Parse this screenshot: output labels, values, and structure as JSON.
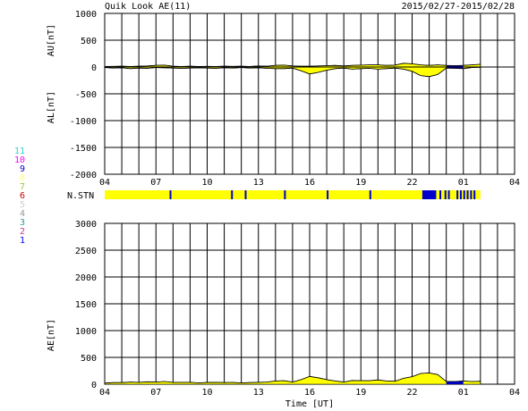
{
  "header": {
    "title": "Quik Look AE(11)",
    "date_range": "2015/02/27-2015/02/28"
  },
  "stations_legend": [
    {
      "label": "11",
      "color": "#33cccc"
    },
    {
      "label": "10",
      "color": "#ff00ff"
    },
    {
      "label": "9",
      "color": "#0000cc"
    },
    {
      "label": "8",
      "color": "#ffff66"
    },
    {
      "label": "7",
      "color": "#99cc33"
    },
    {
      "label": "6",
      "color": "#cc0000"
    },
    {
      "label": "5",
      "color": "#cccccc"
    },
    {
      "label": "4",
      "color": "#999999"
    },
    {
      "label": "3",
      "color": "#339999"
    },
    {
      "label": "2",
      "color": "#cc3399"
    },
    {
      "label": "1",
      "color": "#0000ff"
    }
  ],
  "colors": {
    "au_fill": "#ffff00",
    "al_fill": "#ffff00",
    "ae_fill": "#ffff00",
    "dark_fill": "#0000cc",
    "grid": "#000000",
    "station_base": "#ffff00"
  },
  "chart_data": [
    {
      "type": "area",
      "name": "AU/AL",
      "ylabel_upper": "AU[nT]",
      "ylabel_lower": "AL[nT]",
      "ylim": [
        -2000,
        1000
      ],
      "yticks": [
        1000,
        500,
        0,
        -500,
        -1000,
        -1500,
        -2000
      ],
      "xlim": [
        0,
        24
      ],
      "xtick_labels": [
        "04",
        "07",
        "10",
        "13",
        "16",
        "19",
        "22",
        "01",
        "04"
      ],
      "xtick_hours": [
        0,
        3,
        6,
        9,
        12,
        15,
        18,
        21,
        24
      ],
      "x_hours": [
        0,
        0.5,
        1,
        1.5,
        2,
        2.5,
        3,
        3.5,
        4,
        4.5,
        5,
        5.5,
        6,
        6.5,
        7,
        7.5,
        8,
        8.5,
        9,
        9.5,
        10,
        10.5,
        11,
        11.5,
        12,
        12.5,
        13,
        13.5,
        14,
        14.5,
        15,
        15.5,
        16,
        16.5,
        17,
        17.5,
        18,
        18.5,
        19,
        19.5,
        20,
        20.5,
        21,
        21.5,
        22
      ],
      "au": [
        10,
        12,
        15,
        10,
        15,
        20,
        30,
        35,
        15,
        10,
        15,
        10,
        12,
        10,
        15,
        12,
        15,
        10,
        20,
        15,
        30,
        35,
        20,
        15,
        15,
        20,
        25,
        30,
        20,
        30,
        35,
        40,
        40,
        30,
        35,
        70,
        60,
        40,
        30,
        40,
        30,
        25,
        30,
        40,
        50
      ],
      "al": [
        -10,
        -20,
        -15,
        -30,
        -20,
        -25,
        -10,
        -15,
        -20,
        -25,
        -20,
        -15,
        -20,
        -25,
        -15,
        -20,
        -10,
        -20,
        -15,
        -25,
        -30,
        -30,
        -20,
        -70,
        -130,
        -100,
        -60,
        -30,
        -20,
        -40,
        -30,
        -25,
        -40,
        -30,
        -20,
        -40,
        -80,
        -160,
        -180,
        -140,
        -20,
        -25,
        -30,
        -10,
        -5
      ]
    },
    {
      "type": "area",
      "name": "AE",
      "ylabel": "AE[nT]",
      "xlabel": "Time [UT]",
      "ylim": [
        0,
        3000
      ],
      "yticks": [
        3000,
        2500,
        2000,
        1500,
        1000,
        500,
        0
      ],
      "xlim": [
        0,
        24
      ],
      "xtick_labels": [
        "04",
        "07",
        "10",
        "13",
        "16",
        "19",
        "22",
        "01",
        "04"
      ],
      "xtick_hours": [
        0,
        3,
        6,
        9,
        12,
        15,
        18,
        21,
        24
      ],
      "x_hours": [
        0,
        0.5,
        1,
        1.5,
        2,
        2.5,
        3,
        3.5,
        4,
        4.5,
        5,
        5.5,
        6,
        6.5,
        7,
        7.5,
        8,
        8.5,
        9,
        9.5,
        10,
        10.5,
        11,
        11.5,
        12,
        12.5,
        13,
        13.5,
        14,
        14.5,
        15,
        15.5,
        16,
        16.5,
        17,
        17.5,
        18,
        18.5,
        19,
        19.5,
        20,
        20.5,
        21,
        21.5,
        22
      ],
      "ae": [
        20,
        30,
        30,
        40,
        35,
        45,
        40,
        50,
        35,
        35,
        35,
        25,
        32,
        35,
        30,
        32,
        25,
        30,
        35,
        40,
        60,
        65,
        40,
        85,
        145,
        120,
        85,
        60,
        40,
        70,
        65,
        65,
        80,
        60,
        55,
        110,
        140,
        200,
        210,
        180,
        50,
        50,
        60,
        50,
        55
      ]
    }
  ],
  "station_strip": {
    "label": "N.STN",
    "base_level": 8,
    "base_color": "#ffff00",
    "change_color": "#0000cc",
    "xlim": [
      0,
      24
    ],
    "extent_hours": [
      0,
      22
    ],
    "markers_hours": [
      3.8,
      7.4,
      8.2,
      10.5,
      13,
      15.5,
      18.6,
      18.8,
      19,
      19.3,
      19.6,
      19.9,
      20.1,
      20.6,
      20.8,
      21.0,
      21.2,
      21.4,
      21.6
    ]
  }
}
